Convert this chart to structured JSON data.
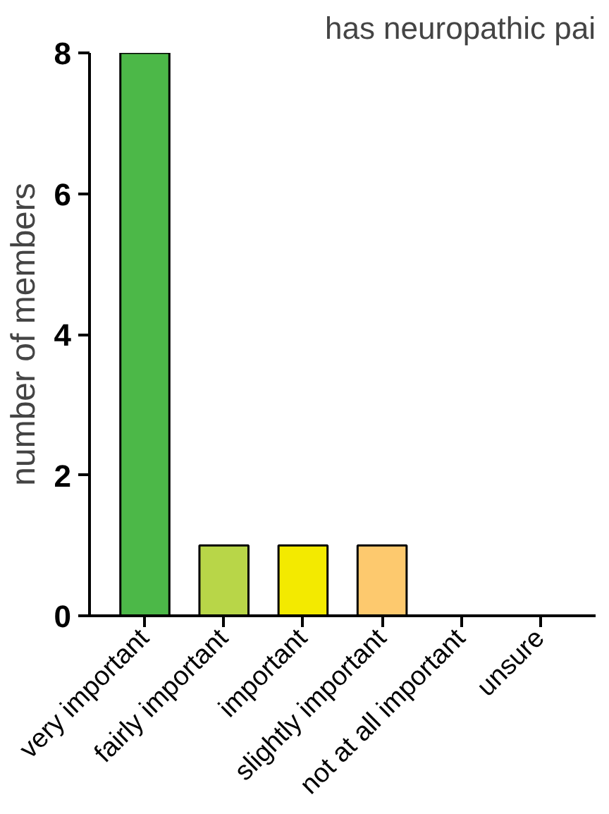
{
  "chart_data": {
    "type": "bar",
    "title": "has neuropathic pai",
    "ylabel": "number of members",
    "categories": [
      "very important",
      "fairly important",
      "important",
      "slightly important",
      "not at all important",
      "unsure"
    ],
    "values": [
      8,
      1,
      1,
      1,
      0,
      0
    ],
    "colors": [
      "#4cb848",
      "#b8d648",
      "#f3ea00",
      "#fdc96e",
      null,
      null
    ],
    "ylim": [
      0,
      8
    ],
    "yticks": [
      0,
      2,
      4,
      6,
      8
    ],
    "grid": false
  }
}
